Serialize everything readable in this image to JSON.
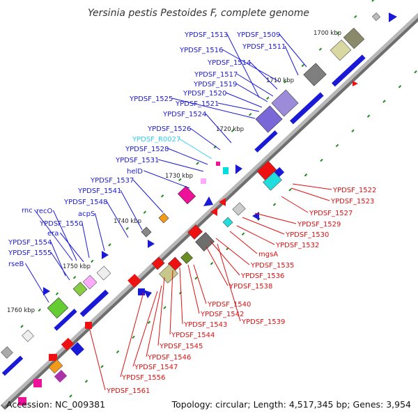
{
  "title": "Yersinia pestis Pestoides F, complete genome",
  "footer": {
    "accession": "Accession: NC_009381",
    "summary": "Topology: circular; Length: 4,517,345 bp; Genes: 3,954"
  },
  "colors": {
    "forward_label": "#1a1ad6",
    "reverse_label": "#dd1111",
    "rna_label": "#33ccee",
    "backbone": "#9a9a9a",
    "tick": "#1f8a1f"
  },
  "kbp_marks": [
    "1700 kbp",
    "1710 kbp",
    "1720 kbp",
    "1730 kbp",
    "1740 kbp",
    "1750 kbp",
    "1760 kbp"
  ],
  "forward_labels": [
    "YPDSF_1513",
    "YPDSF_1509",
    "YPDSF_1511",
    "YPDSF_1516",
    "YPDSF_1514",
    "YPDSF_1517",
    "YPDSF_1519",
    "YPDSF_1520",
    "YPDSF_1525",
    "YPDSF_1521",
    "YPDSF_1524",
    "YPDSF_1526",
    "YPDSF_R0027",
    "YPDSF_1528",
    "YPDSF_1531",
    "helD",
    "YPDSF_1537",
    "YPDSF_1541",
    "YPDSF_1548",
    "acpS",
    "rnc",
    "recO",
    "YPDSF_1550",
    "era",
    "YPDSF_1554",
    "YPDSF_1555",
    "rseB"
  ],
  "reverse_labels": [
    "YPDSF_1522",
    "YPDSF_1523",
    "YPDSF_1527",
    "YPDSF_1529",
    "YPDSF_1530",
    "YPDSF_1532",
    "mgsA",
    "YPDSF_1535",
    "YPDSF_1536",
    "YPDSF_1538",
    "YPDSF_1540",
    "YPDSF_1542",
    "YPDSF_1539",
    "YPDSF_1543",
    "YPDSF_1544",
    "YPDSF_1545",
    "YPDSF_1546",
    "YPDSF_1547",
    "YPDSF_1556",
    "YPDSF_1561"
  ]
}
